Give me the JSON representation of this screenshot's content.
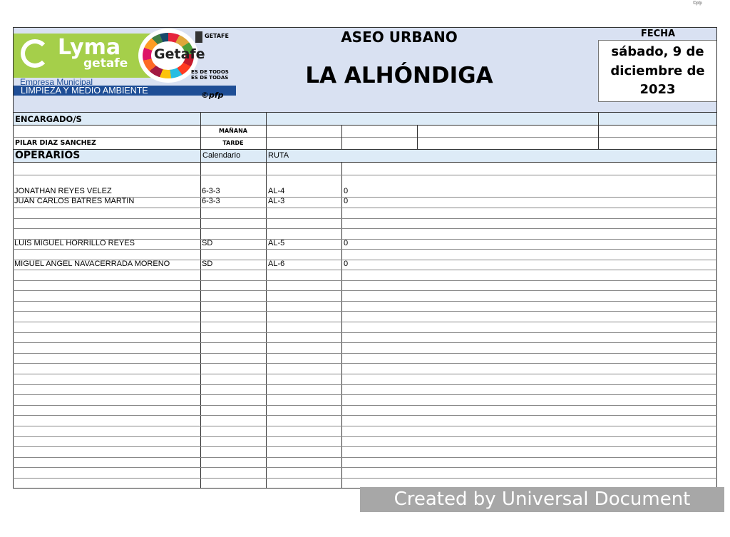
{
  "corner_mark": "©pfp",
  "logo": {
    "brand": "Lyma",
    "brand_sub": "getafe",
    "empresa": "Empresa Municipal",
    "tagline": "LIMPIEZA Y MEDIO AMBIENTE",
    "getafe": "Getafe",
    "ayto": "GETAFE",
    "slogan1": "ES DE TODOS",
    "slogan2": "ES DE TODAS",
    "copyright": "©pfp",
    "colors": {
      "green": "#a5cf4a",
      "blue": "#1f4e96"
    }
  },
  "header": {
    "title": "ASEO URBANO",
    "subtitle": "LA ALHÓNDIGA",
    "fecha_label": "FECHA",
    "fecha_lines": [
      "sábado, 9 de",
      "diciembre de",
      "2023"
    ]
  },
  "encargados": {
    "label": "ENCARGADO/S",
    "manana": "MAÑANA",
    "tarde": "TARDE",
    "tarde_name": "PILAR DIAZ SANCHEZ"
  },
  "operarios": {
    "label": "OPERARIOS",
    "col_calendario": "Calendario",
    "col_ruta": "RUTA",
    "rows": [
      {
        "name": "JONATHAN REYES VELEZ",
        "calendario": "6-3-3",
        "ruta": "AL-4",
        "value": "0"
      },
      {
        "name": "JUAN CARLOS BATRES MARTIN",
        "calendario": "6-3-3",
        "ruta": "AL-3",
        "value": "0"
      },
      {
        "name": "LUIS MIGUEL HORRILLO REYES",
        "calendario": "SD",
        "ruta": "AL-5",
        "value": "0"
      },
      {
        "name": "MIGUEL ANGEL NAVACERRADA MORENO",
        "calendario": "SD",
        "ruta": "AL-6",
        "value": "0"
      }
    ]
  },
  "watermark": "Created by Universal Document Converter"
}
